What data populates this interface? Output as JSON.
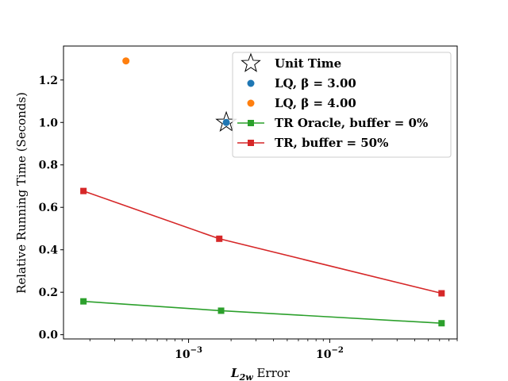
{
  "chart_data": {
    "type": "line",
    "xscale": "log",
    "xlim": [
      0.00013,
      0.08
    ],
    "ylim": [
      -0.02,
      1.36
    ],
    "xlabel_main": "L",
    "xlabel_sub": "2w",
    "xlabel_rest": " Error",
    "ylabel": "Relative Running Time (Seconds)",
    "yticks": [
      {
        "value": 0.0,
        "label": "0.0"
      },
      {
        "value": 0.2,
        "label": "0.2"
      },
      {
        "value": 0.4,
        "label": "0.4"
      },
      {
        "value": 0.6,
        "label": "0.6"
      },
      {
        "value": 0.8,
        "label": "0.8"
      },
      {
        "value": 1.0,
        "label": "1.0"
      },
      {
        "value": 1.2,
        "label": "1.2"
      }
    ],
    "xticks": [
      {
        "value": 0.001,
        "base": "10",
        "exp": "−3"
      },
      {
        "value": 0.01,
        "base": "10",
        "exp": "−2"
      }
    ],
    "legend_position": "upper right",
    "grid": false,
    "series": [
      {
        "name": "Unit Time",
        "kind": "star",
        "color": "#ffffff",
        "points": [
          {
            "x": 0.00185,
            "y": 1.0
          }
        ]
      },
      {
        "name": "LQ, β = 3.00",
        "kind": "dot",
        "color": "#1f77b4",
        "points": [
          {
            "x": 0.00185,
            "y": 1.0
          }
        ]
      },
      {
        "name": "LQ, β = 4.00",
        "kind": "dot",
        "color": "#ff7f0e",
        "points": [
          {
            "x": 0.00036,
            "y": 1.29
          }
        ]
      },
      {
        "name": "TR Oracle, buffer = 0%",
        "kind": "line",
        "color": "#2ca02c",
        "points": [
          {
            "x": 0.00018,
            "y": 0.157
          },
          {
            "x": 0.0017,
            "y": 0.113
          },
          {
            "x": 0.062,
            "y": 0.054
          }
        ]
      },
      {
        "name": "TR, buffer = 50%",
        "kind": "line",
        "color": "#d62728",
        "points": [
          {
            "x": 0.00018,
            "y": 0.677
          },
          {
            "x": 0.00165,
            "y": 0.452
          },
          {
            "x": 0.062,
            "y": 0.195
          }
        ]
      }
    ]
  }
}
